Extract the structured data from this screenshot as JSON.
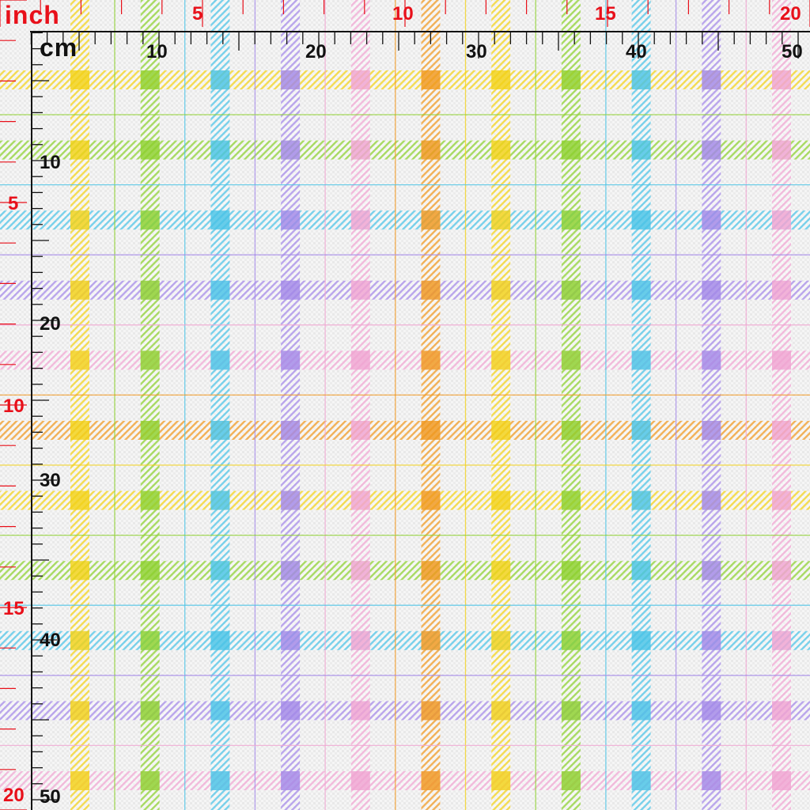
{
  "rulers": {
    "inch_title": "inch",
    "cm_title": "cm",
    "inch_top_labels": [
      "5",
      "10",
      "15",
      "20"
    ],
    "cm_top_labels": [
      "10",
      "20",
      "30",
      "40",
      "50"
    ],
    "inch_left_labels": [
      "5",
      "10",
      "15",
      "20"
    ],
    "cm_left_labels": [
      "10",
      "20",
      "30",
      "40",
      "50"
    ]
  },
  "palette": {
    "stripes": [
      "#f2d21d",
      "#8fd133",
      "#4ec4e6",
      "#a58be8",
      "#f0a6d2",
      "#f09a24"
    ],
    "ruler_red": "#e8101a",
    "ruler_black": "#111111",
    "background": "#f4f4f4"
  }
}
